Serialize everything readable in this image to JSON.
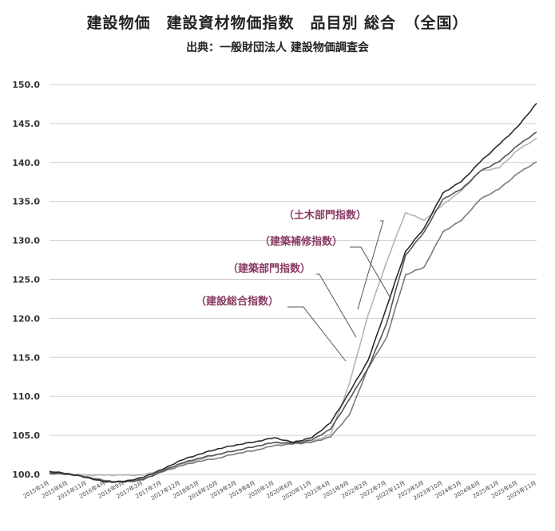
{
  "title": "建設物価　建設資材物価指数　品目別 総合　（全国）",
  "subtitle": "出典：一般財団法人 建設物価調査会",
  "colors": {
    "label_text": "#8a3b63",
    "series_total": "#2b2b2b",
    "series_building": "#555555",
    "series_repair": "#7a7a7a",
    "series_civil": "#b4b4b4",
    "grid": "#cfcfcf"
  },
  "chart_data": {
    "type": "line",
    "ylim": [
      100,
      150
    ],
    "yticks": [
      "100.0",
      "105.0",
      "110.0",
      "115.0",
      "120.0",
      "125.0",
      "130.0",
      "135.0",
      "140.0",
      "145.0",
      "150.0"
    ],
    "x_start": "2015年1月",
    "x_end": "2025年11月",
    "xticks": [
      "2015年1月",
      "2015年6月",
      "2015年11月",
      "2016年4月",
      "2016年9月",
      "2017年2月",
      "2017年7月",
      "2017年12月",
      "2018年5月",
      "2018年10月",
      "2019年3月",
      "2019年8月",
      "2020年1月",
      "2020年6月",
      "2020年11月",
      "2021年4月",
      "2021年9月",
      "2022年2月",
      "2022年7月",
      "2022年12月",
      "2023年5月",
      "2023年10月",
      "2024年3月",
      "2024年8月",
      "2025年1月",
      "2025年6月",
      "2025年11月"
    ],
    "grid": true,
    "legend": "inline-callouts",
    "series": [
      {
        "name": "（建設総合指数）",
        "color": "#2b2b2b",
        "points": [
          [
            "2015年1月",
            100.4
          ],
          [
            "2015年6月",
            100.1
          ],
          [
            "2015年11月",
            99.6
          ],
          [
            "2016年4月",
            99.0
          ],
          [
            "2016年9月",
            99.1
          ],
          [
            "2017年2月",
            99.6
          ],
          [
            "2017年7月",
            100.6
          ],
          [
            "2017年12月",
            101.8
          ],
          [
            "2018年5月",
            102.6
          ],
          [
            "2018年10月",
            103.3
          ],
          [
            "2019年3月",
            103.8
          ],
          [
            "2019年8月",
            104.2
          ],
          [
            "2020年1月",
            104.7
          ],
          [
            "2020年6月",
            104.1
          ],
          [
            "2020年11月",
            104.7
          ],
          [
            "2021年4月",
            106.6
          ],
          [
            "2021年9月",
            110.5
          ],
          [
            "2022年2月",
            114.6
          ],
          [
            "2022年7月",
            121.5
          ],
          [
            "2022年12月",
            128.6
          ],
          [
            "2023年5月",
            131.6
          ],
          [
            "2023年10月",
            136.1
          ],
          [
            "2024年3月",
            137.6
          ],
          [
            "2024年8月",
            140.1
          ],
          [
            "2025年1月",
            142.3
          ],
          [
            "2025年6月",
            144.6
          ],
          [
            "2025年11月",
            147.6
          ]
        ]
      },
      {
        "name": "（建築部門指数）",
        "color": "#555555",
        "points": [
          [
            "2015年1月",
            100.2
          ],
          [
            "2015年6月",
            100.1
          ],
          [
            "2015年11月",
            99.6
          ],
          [
            "2016年4月",
            99.1
          ],
          [
            "2016年9月",
            99.0
          ],
          [
            "2017年2月",
            99.3
          ],
          [
            "2017年7月",
            100.4
          ],
          [
            "2017年12月",
            101.4
          ],
          [
            "2018年5月",
            102.1
          ],
          [
            "2018年10月",
            102.6
          ],
          [
            "2019年3月",
            103.1
          ],
          [
            "2019年8月",
            103.6
          ],
          [
            "2020年1月",
            104.1
          ],
          [
            "2020年6月",
            104.0
          ],
          [
            "2020年11月",
            104.4
          ],
          [
            "2021年4月",
            105.8
          ],
          [
            "2021年9月",
            109.6
          ],
          [
            "2022年2月",
            113.6
          ],
          [
            "2022年7月",
            119.4
          ],
          [
            "2022年12月",
            128.1
          ],
          [
            "2023年5月",
            131.1
          ],
          [
            "2023年10月",
            135.3
          ],
          [
            "2024年3月",
            136.6
          ],
          [
            "2024年8月",
            138.9
          ],
          [
            "2025年1月",
            140.1
          ],
          [
            "2025年6月",
            142.2
          ],
          [
            "2025年11月",
            143.9
          ]
        ]
      },
      {
        "name": "（建築補修指数）",
        "color": "#7a7a7a",
        "points": [
          [
            "2015年1月",
            100.1
          ],
          [
            "2015年6月",
            100.0
          ],
          [
            "2015年11月",
            99.7
          ],
          [
            "2016年4月",
            99.2
          ],
          [
            "2016年9月",
            99.0
          ],
          [
            "2017年2月",
            99.4
          ],
          [
            "2017年7月",
            100.3
          ],
          [
            "2017年12月",
            101.1
          ],
          [
            "2018年5月",
            101.7
          ],
          [
            "2018年10月",
            102.1
          ],
          [
            "2019年3月",
            102.7
          ],
          [
            "2019年8月",
            103.1
          ],
          [
            "2020年1月",
            103.7
          ],
          [
            "2020年6月",
            103.9
          ],
          [
            "2020年11月",
            104.1
          ],
          [
            "2021年4月",
            104.8
          ],
          [
            "2021年9月",
            107.6
          ],
          [
            "2022年2月",
            113.6
          ],
          [
            "2022年7月",
            117.6
          ],
          [
            "2022年12月",
            125.6
          ],
          [
            "2023年5月",
            126.6
          ],
          [
            "2023年10月",
            131.1
          ],
          [
            "2024年3月",
            132.6
          ],
          [
            "2024年8月",
            135.3
          ],
          [
            "2025年1月",
            136.6
          ],
          [
            "2025年6月",
            138.6
          ],
          [
            "2025年11月",
            140.1
          ]
        ]
      },
      {
        "name": "（土木部門指数）",
        "color": "#b4b4b4",
        "points": [
          [
            "2015年1月",
            100.3
          ],
          [
            "2015年6月",
            100.1
          ],
          [
            "2015年11月",
            99.9
          ],
          [
            "2016年4月",
            99.9
          ],
          [
            "2016年9月",
            99.9
          ],
          [
            "2017年2月",
            99.9
          ],
          [
            "2017年7月",
            100.6
          ],
          [
            "2017年12月",
            101.3
          ],
          [
            "2018年5月",
            101.9
          ],
          [
            "2018年10月",
            102.6
          ],
          [
            "2019年3月",
            103.1
          ],
          [
            "2019年8月",
            103.6
          ],
          [
            "2020年1月",
            104.1
          ],
          [
            "2020年6月",
            103.9
          ],
          [
            "2020年11月",
            104.2
          ],
          [
            "2021年4月",
            105.1
          ],
          [
            "2021年9月",
            111.6
          ],
          [
            "2022年2月",
            120.4
          ],
          [
            "2022年7月",
            127.3
          ],
          [
            "2022年12月",
            133.6
          ],
          [
            "2023年5月",
            132.6
          ],
          [
            "2023年10月",
            134.6
          ],
          [
            "2024年3月",
            136.4
          ],
          [
            "2024年8月",
            138.9
          ],
          [
            "2025年1月",
            139.3
          ],
          [
            "2025年6月",
            141.6
          ],
          [
            "2025年11月",
            143.1
          ]
        ]
      }
    ]
  }
}
